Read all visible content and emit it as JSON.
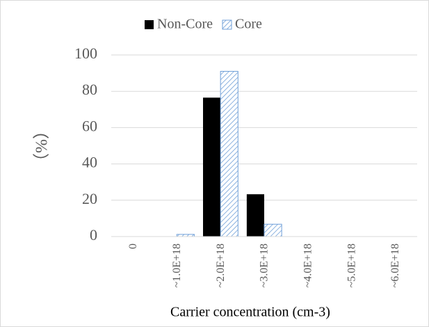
{
  "chart_data": {
    "type": "bar",
    "categories": [
      "0",
      "~1.0E+18",
      "~2.0E+18",
      "~3.0E+18",
      "~4.0E+18",
      "~5.0E+18",
      "~6.0E+18"
    ],
    "series": [
      {
        "name": "Non-Core",
        "color": "#000000",
        "values": [
          0,
          0,
          76.5,
          23.3,
          0,
          0,
          0
        ]
      },
      {
        "name": "Core",
        "color": "#6f9fd8",
        "values": [
          0,
          1.2,
          91,
          6.8,
          0,
          0,
          0
        ]
      }
    ],
    "y_label": "（%）",
    "x_label": "Carrier concentration (cm-3)",
    "ylim": [
      0,
      100
    ],
    "yticks": [
      0,
      20,
      40,
      60,
      80,
      100
    ],
    "grid": true,
    "legend": "top"
  }
}
